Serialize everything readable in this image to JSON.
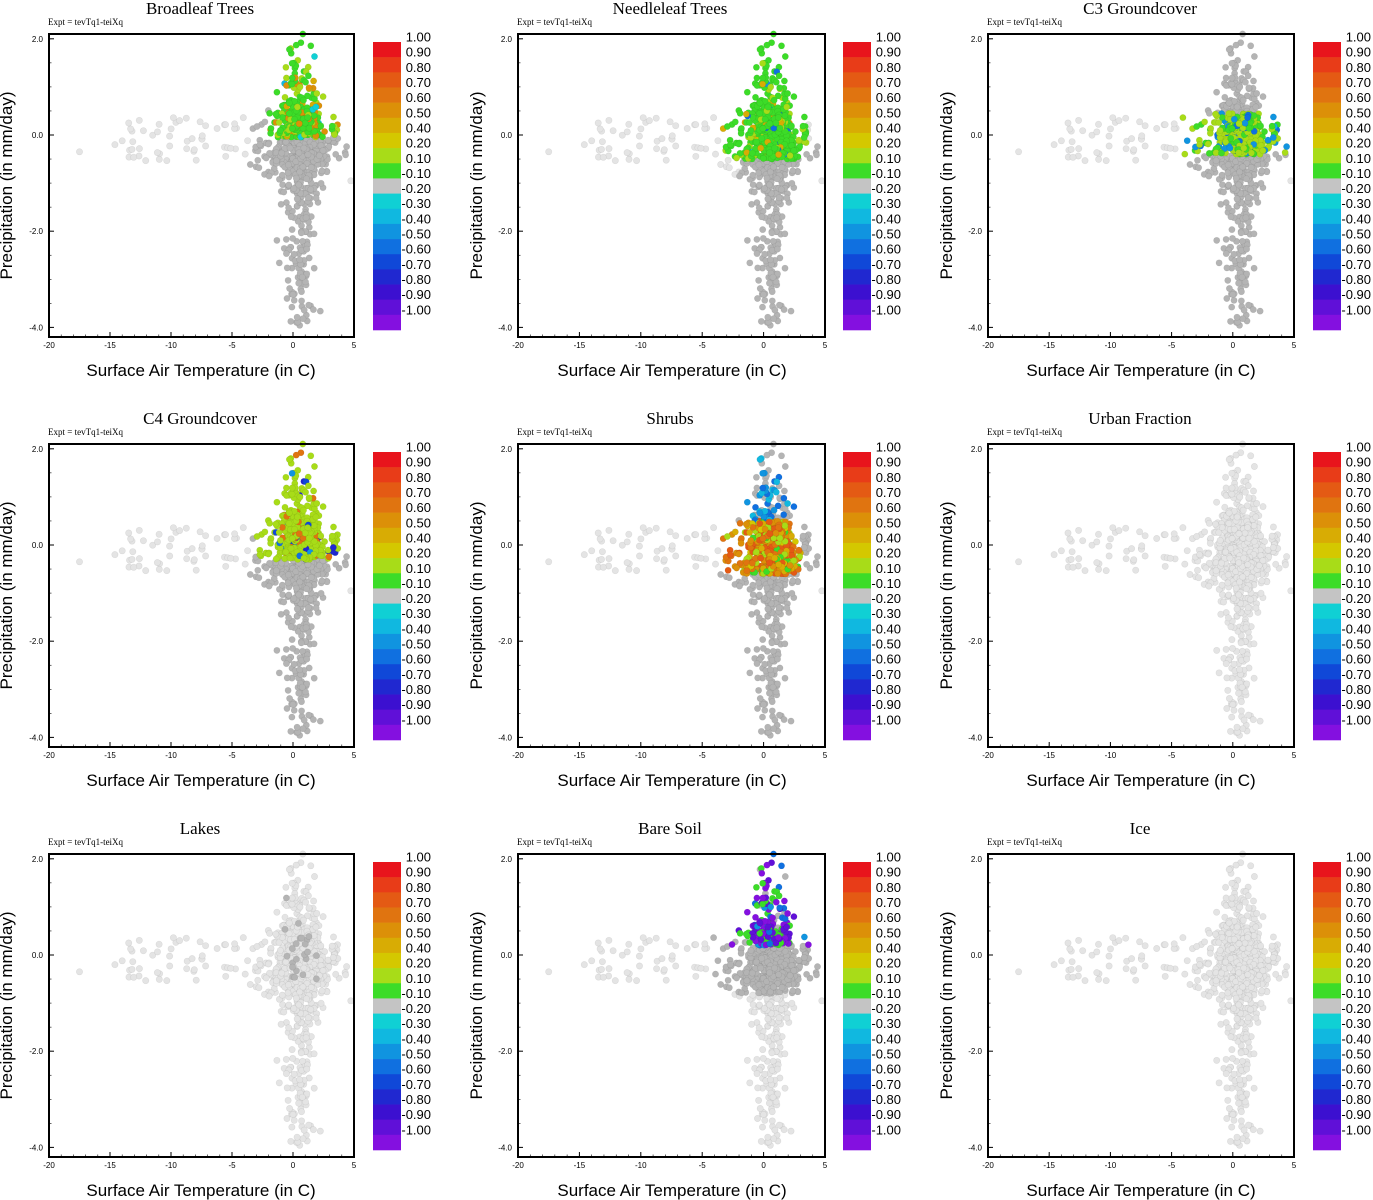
{
  "figure": {
    "expt_label": "Expt = tevTq1-teiXq",
    "xlabel": "Surface Air Temperature (in C)",
    "ylabel": "Precipitation (in mm/day)",
    "x_ticks": [
      "-20",
      "-15",
      "-10",
      "-5",
      "0",
      "5"
    ],
    "y_ticks": [
      "2.0",
      "0.0",
      "-2.0",
      "-4.0"
    ],
    "colorbar": {
      "labels": [
        "1.00",
        "0.90",
        "0.80",
        "0.70",
        "0.60",
        "0.50",
        "0.40",
        "0.20",
        "0.10",
        "-0.10",
        "-0.20",
        "-0.30",
        "-0.40",
        "-0.50",
        "-0.60",
        "-0.70",
        "-0.80",
        "-0.90",
        "-1.00"
      ],
      "colors": [
        "#e8141c",
        "#e83c18",
        "#e45a14",
        "#e07410",
        "#dc9008",
        "#d8ac04",
        "#d4c800",
        "#a8dc18",
        "#3cdc28",
        "#c4c4c4",
        "#10d0d4",
        "#10b8e0",
        "#1094e0",
        "#1070e0",
        "#1048d8",
        "#2028d0",
        "#3c10d0",
        "#6010d8",
        "#8410e0"
      ]
    },
    "background_point_color": "#e4e4e4",
    "neutral_point_color": "#b4b4b4"
  },
  "chart_data": [
    {
      "type": "scatter",
      "title": "Broadleaf Trees",
      "xlim": [
        -20,
        5
      ],
      "ylim": [
        -4.2,
        2.1
      ],
      "xlabel": "Surface Air Temperature (in C)",
      "ylabel": "Precipitation (in mm/day)",
      "color_range": [
        -1.0,
        1.0
      ],
      "profile": "broadleaf"
    },
    {
      "type": "scatter",
      "title": "Needleleaf Trees",
      "xlim": [
        -20,
        5
      ],
      "ylim": [
        -4.2,
        2.1
      ],
      "xlabel": "Surface Air Temperature (in C)",
      "ylabel": "Precipitation (in mm/day)",
      "color_range": [
        -1.0,
        1.0
      ],
      "profile": "needleleaf"
    },
    {
      "type": "scatter",
      "title": "C3 Groundcover",
      "xlim": [
        -20,
        5
      ],
      "ylim": [
        -4.2,
        2.1
      ],
      "xlabel": "Surface Air Temperature (in C)",
      "ylabel": "Precipitation (in mm/day)",
      "color_range": [
        -1.0,
        1.0
      ],
      "profile": "c3"
    },
    {
      "type": "scatter",
      "title": "C4 Groundcover",
      "xlim": [
        -20,
        5
      ],
      "ylim": [
        -4.2,
        2.1
      ],
      "xlabel": "Surface Air Temperature (in C)",
      "ylabel": "Precipitation (in mm/day)",
      "color_range": [
        -1.0,
        1.0
      ],
      "profile": "c4"
    },
    {
      "type": "scatter",
      "title": "Shrubs",
      "xlim": [
        -20,
        5
      ],
      "ylim": [
        -4.2,
        2.1
      ],
      "xlabel": "Surface Air Temperature (in C)",
      "ylabel": "Precipitation (in mm/day)",
      "color_range": [
        -1.0,
        1.0
      ],
      "profile": "shrubs"
    },
    {
      "type": "scatter",
      "title": "Urban Fraction",
      "xlim": [
        -20,
        5
      ],
      "ylim": [
        -4.2,
        2.1
      ],
      "xlabel": "Surface Air Temperature (in C)",
      "ylabel": "Precipitation (in mm/day)",
      "color_range": [
        -1.0,
        1.0
      ],
      "profile": "urban"
    },
    {
      "type": "scatter",
      "title": "Lakes",
      "xlim": [
        -20,
        5
      ],
      "ylim": [
        -4.2,
        2.1
      ],
      "xlabel": "Surface Air Temperature (in C)",
      "ylabel": "Precipitation (in mm/day)",
      "color_range": [
        -1.0,
        1.0
      ],
      "profile": "lakes"
    },
    {
      "type": "scatter",
      "title": "Bare Soil",
      "xlim": [
        -20,
        5
      ],
      "ylim": [
        -4.2,
        2.1
      ],
      "xlabel": "Surface Air Temperature (in C)",
      "ylabel": "Precipitation (in mm/day)",
      "color_range": [
        -1.0,
        1.0
      ],
      "profile": "baresoil"
    },
    {
      "type": "scatter",
      "title": "Ice",
      "xlim": [
        -20,
        5
      ],
      "ylim": [
        -4.2,
        2.1
      ],
      "xlabel": "Surface Air Temperature (in C)",
      "ylabel": "Precipitation (in mm/day)",
      "color_range": [
        -1.0,
        1.0
      ],
      "profile": "ice"
    }
  ]
}
